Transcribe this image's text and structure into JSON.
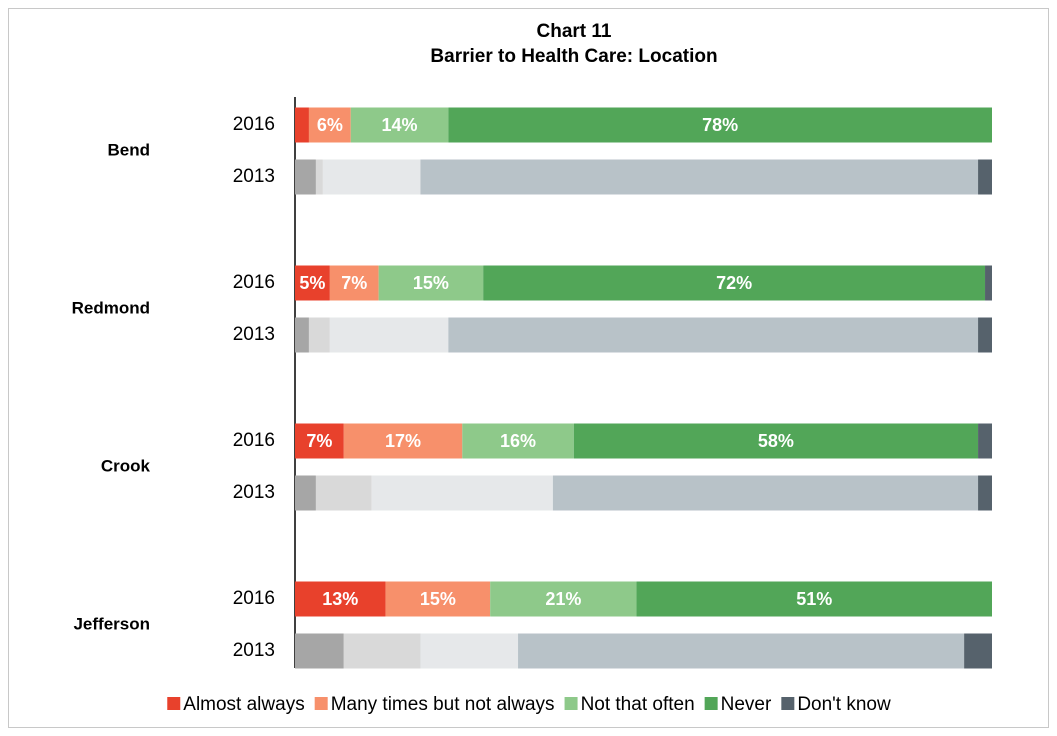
{
  "chart_data": {
    "type": "stacked_barh",
    "title": "Chart 11",
    "subtitle": "Barrier to Health Care: Location",
    "groups": [
      "Bend",
      "Redmond",
      "Crook",
      "Jefferson"
    ],
    "categories": [
      "2016",
      "2013",
      "2016",
      "2013",
      "2016",
      "2013",
      "2016",
      "2013"
    ],
    "xlim": [
      0,
      100
    ],
    "legend": "bottom",
    "series": [
      {
        "name": "Almost always",
        "color": "#e8412c",
        "muted_color": "#a6a6a6",
        "values": [
          2,
          3,
          5,
          2,
          7,
          3,
          13,
          7
        ],
        "value_labels": [
          null,
          null,
          "5%",
          null,
          "7%",
          null,
          "13%",
          null
        ]
      },
      {
        "name": "Many times but not always",
        "color": "#f7906b",
        "muted_color": "#d9d9d9",
        "values": [
          6,
          1,
          7,
          3,
          17,
          8,
          15,
          11
        ],
        "value_labels": [
          "6%",
          null,
          "7%",
          null,
          "17%",
          null,
          "15%",
          null
        ]
      },
      {
        "name": "Not that often",
        "color": "#8ec98a",
        "muted_color": "#e6e8ea",
        "values": [
          14,
          14,
          15,
          17,
          16,
          26,
          21,
          14
        ],
        "value_labels": [
          "14%",
          null,
          "15%",
          null,
          "16%",
          null,
          "21%",
          null
        ]
      },
      {
        "name": "Never",
        "color": "#52a658",
        "muted_color": "#b8c2c8",
        "values": [
          78,
          80,
          72,
          76,
          58,
          61,
          51,
          64
        ],
        "value_labels": [
          "78%",
          null,
          "72%",
          null,
          "58%",
          null,
          "51%",
          null
        ]
      },
      {
        "name": "Don't know",
        "color": "#56626c",
        "muted_color": "#56626c",
        "values": [
          0,
          2,
          1,
          2,
          2,
          2,
          0,
          4
        ],
        "value_labels": [
          null,
          null,
          null,
          null,
          null,
          null,
          null,
          null
        ]
      }
    ]
  }
}
